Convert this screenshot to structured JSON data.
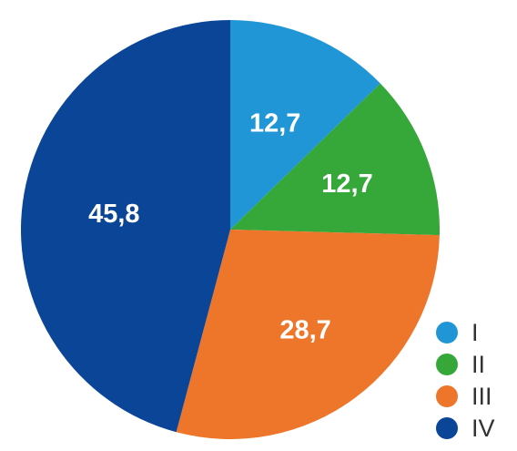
{
  "chart_data": {
    "type": "pie",
    "title": "",
    "start_angle_deg": 0,
    "direction": "clockwise",
    "legend_position": "bottom-right",
    "slices": [
      {
        "label": "I",
        "value": 12.7,
        "display": "12,7",
        "color": "#2196D6"
      },
      {
        "label": "II",
        "value": 12.7,
        "display": "12,7",
        "color": "#36A83A"
      },
      {
        "label": "III",
        "value": 28.7,
        "display": "28,7",
        "color": "#EE762A"
      },
      {
        "label": "IV",
        "value": 45.8,
        "display": "45,8",
        "color": "#0A4597"
      }
    ]
  }
}
